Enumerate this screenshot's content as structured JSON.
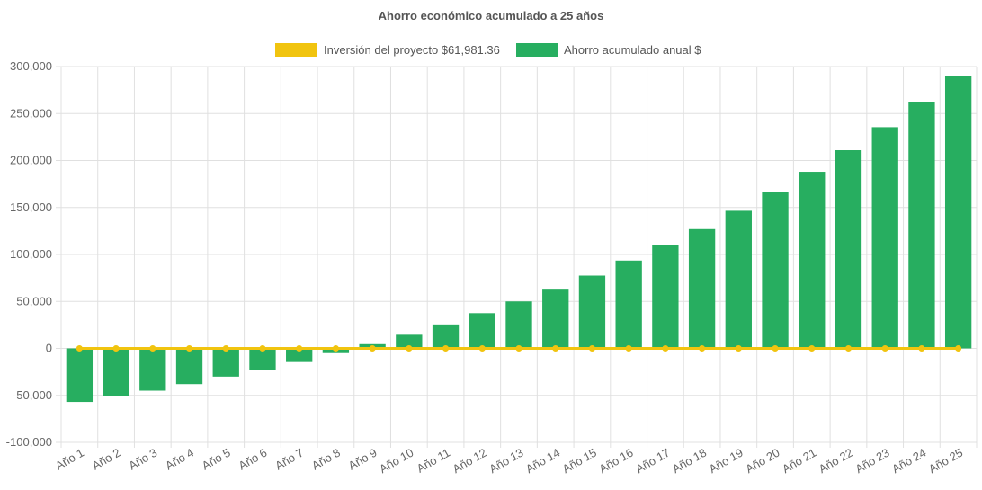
{
  "chart_data": {
    "type": "bar",
    "title": "Ahorro económico acumulado a 25 años",
    "categories": [
      "Año 1",
      "Año 2",
      "Año 3",
      "Año 4",
      "Año 5",
      "Año 6",
      "Año 7",
      "Año 8",
      "Año 9",
      "Año 10",
      "Año 11",
      "Año 12",
      "Año 13",
      "Año 14",
      "Año 15",
      "Año 16",
      "Año 17",
      "Año 18",
      "Año 19",
      "Año 20",
      "Año 21",
      "Año 22",
      "Año 23",
      "Año 24",
      "Año 25"
    ],
    "series": [
      {
        "name": "Inversión del proyecto $61,981.36",
        "type": "line",
        "color": "#f1c40f",
        "values": [
          0,
          0,
          0,
          0,
          0,
          0,
          0,
          0,
          0,
          0,
          0,
          0,
          0,
          0,
          0,
          0,
          0,
          0,
          0,
          0,
          0,
          0,
          0,
          0,
          0
        ]
      },
      {
        "name": "Ahorro acumulado anual $",
        "type": "bar",
        "color": "#27ae60",
        "values": [
          -57000,
          -51000,
          -45000,
          -38000,
          -30000,
          -22500,
          -14500,
          -5000,
          4500,
          14500,
          25500,
          37500,
          50000,
          63500,
          77500,
          93500,
          110000,
          127000,
          146500,
          166500,
          188000,
          211000,
          235500,
          262000,
          290000
        ]
      }
    ],
    "ylim": [
      -100000,
      300000
    ],
    "yticks": [
      "300,000",
      "250,000",
      "200,000",
      "150,000",
      "100,000",
      "50,000",
      "0",
      "-50,000",
      "-100,000"
    ],
    "ytick_values": [
      300000,
      250000,
      200000,
      150000,
      100000,
      50000,
      0,
      -50000,
      -100000
    ],
    "grid": true,
    "legend_position": "top"
  }
}
